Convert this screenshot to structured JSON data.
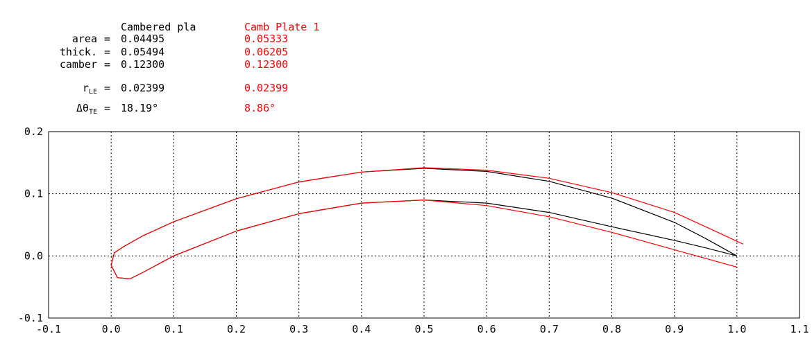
{
  "stats": {
    "headers": {
      "a": "Cambered pla",
      "b": "Camb Plate 1"
    },
    "rows": [
      {
        "label": "area",
        "sub": "",
        "a": "0.04495",
        "b": "0.05333"
      },
      {
        "label": "thick.",
        "sub": "",
        "a": "0.05494",
        "b": "0.06205"
      },
      {
        "label": "camber",
        "sub": "",
        "a": "0.12300",
        "b": "0.12300"
      },
      {
        "label": "r",
        "sub": "LE",
        "a": "0.02399",
        "b": "0.02399"
      },
      {
        "label": "Δθ",
        "sub": "TE",
        "a": "18.19°",
        "b": "8.86°"
      }
    ]
  },
  "colors": {
    "series_a": "#000000",
    "series_b": "#ff0000",
    "grid": "#000000"
  },
  "chart_data": {
    "type": "line",
    "title": "",
    "xlabel": "",
    "ylabel": "",
    "xlim": [
      -0.1,
      1.1
    ],
    "ylim": [
      -0.1,
      0.2
    ],
    "xticks": [
      "-0.1",
      "0.0",
      "0.1",
      "0.2",
      "0.3",
      "0.4",
      "0.5",
      "0.6",
      "0.7",
      "0.8",
      "0.9",
      "1.0",
      "1.1"
    ],
    "yticks": [
      "0.2",
      "0.1",
      "0.0",
      "-0.1"
    ],
    "grid": true,
    "series": [
      {
        "name": "Cambered pla",
        "color": "#000000",
        "x": [
          1.0,
          0.95,
          0.9,
          0.8,
          0.7,
          0.6,
          0.5,
          0.4,
          0.3,
          0.2,
          0.1,
          0.05,
          0.02,
          0.005,
          0.0,
          0.01,
          0.03,
          0.05,
          0.1,
          0.2,
          0.3,
          0.4,
          0.5,
          0.6,
          0.7,
          0.8,
          0.9,
          0.95,
          1.0
        ],
        "y": [
          0.0,
          0.028,
          0.054,
          0.093,
          0.12,
          0.136,
          0.141,
          0.135,
          0.119,
          0.092,
          0.055,
          0.032,
          0.015,
          0.005,
          -0.015,
          -0.035,
          -0.037,
          -0.027,
          0.0,
          0.04,
          0.068,
          0.085,
          0.09,
          0.085,
          0.07,
          0.047,
          0.025,
          0.013,
          0.0
        ]
      },
      {
        "name": "Camb Plate 1",
        "color": "#ff0000",
        "x": [
          1.01,
          0.95,
          0.9,
          0.8,
          0.7,
          0.6,
          0.5,
          0.4,
          0.3,
          0.2,
          0.1,
          0.05,
          0.02,
          0.005,
          0.0,
          0.01,
          0.03,
          0.05,
          0.1,
          0.2,
          0.3,
          0.4,
          0.5,
          0.6,
          0.7,
          0.8,
          0.9,
          0.95,
          1.0
        ],
        "y": [
          0.019,
          0.047,
          0.07,
          0.102,
          0.125,
          0.138,
          0.142,
          0.135,
          0.119,
          0.092,
          0.055,
          0.032,
          0.015,
          0.005,
          -0.015,
          -0.035,
          -0.037,
          -0.027,
          0.0,
          0.04,
          0.068,
          0.085,
          0.09,
          0.081,
          0.063,
          0.038,
          0.01,
          -0.004,
          -0.018
        ]
      }
    ]
  }
}
